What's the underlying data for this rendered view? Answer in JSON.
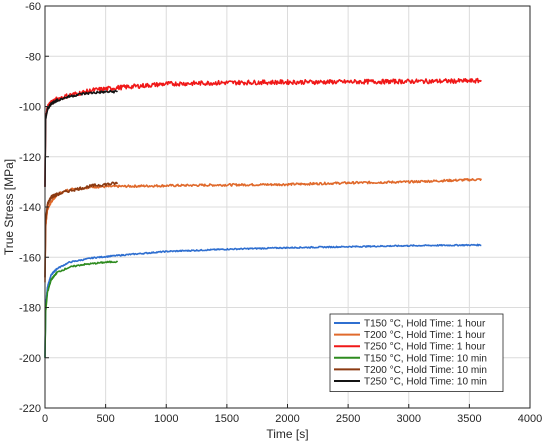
{
  "chart_data": {
    "type": "line",
    "title": "",
    "xlabel": "Time [s]",
    "ylabel": "True Stress [MPa]",
    "xlim": [
      0,
      4000
    ],
    "ylim": [
      -220,
      -60
    ],
    "xticks": [
      0,
      500,
      1000,
      1500,
      2000,
      2500,
      3000,
      3500,
      4000
    ],
    "yticks": [
      -220,
      -200,
      -180,
      -160,
      -140,
      -120,
      -100,
      -80,
      -60
    ],
    "grid": true,
    "legend": "bottom-right",
    "series": [
      {
        "name": "T150 °C, Hold Time: 1 hour",
        "color": "#2f6fd0",
        "noise": 0.25,
        "x": [
          0,
          5,
          20,
          50,
          100,
          200,
          400,
          600,
          1000,
          1500,
          2000,
          2500,
          3000,
          3600
        ],
        "y": [
          -200,
          -180,
          -172,
          -167,
          -164.5,
          -162,
          -160.2,
          -159.3,
          -157.7,
          -156.8,
          -156.2,
          -155.8,
          -155.4,
          -155.1
        ]
      },
      {
        "name": "T200 °C, Hold Time: 1 hour",
        "color": "#e06a2c",
        "noise": 0.45,
        "x": [
          0,
          5,
          20,
          50,
          100,
          200,
          400,
          600,
          1000,
          1500,
          2000,
          2500,
          3000,
          3600
        ],
        "y": [
          -170,
          -148,
          -141,
          -138,
          -135,
          -133,
          -132,
          -131.8,
          -131.5,
          -131.2,
          -131,
          -130.4,
          -130,
          -129
        ]
      },
      {
        "name": "T250 °C, Hold Time: 1 hour",
        "color": "#f01818",
        "noise": 0.9,
        "x": [
          0,
          5,
          20,
          50,
          100,
          200,
          400,
          600,
          1000,
          1500,
          2000,
          2500,
          3000,
          3600
        ],
        "y": [
          -132,
          -104,
          -100.5,
          -98.5,
          -97,
          -95.5,
          -93.5,
          -92.5,
          -91,
          -90.5,
          -90.3,
          -90.2,
          -90,
          -89.8
        ]
      },
      {
        "name": "T150 °C, Hold Time: 10 min",
        "color": "#2e8b1f",
        "noise": 0.3,
        "x": [
          0,
          5,
          20,
          50,
          100,
          200,
          300,
          400,
          500,
          600
        ],
        "y": [
          -200,
          -182,
          -174,
          -169,
          -166,
          -164,
          -163,
          -162.5,
          -162,
          -161.7
        ]
      },
      {
        "name": "T200 °C, Hold Time: 10 min",
        "color": "#8b3a12",
        "noise": 0.6,
        "x": [
          0,
          5,
          20,
          50,
          100,
          200,
          300,
          400,
          500,
          600
        ],
        "y": [
          -168,
          -146,
          -139,
          -136,
          -135,
          -133.5,
          -132.5,
          -131.5,
          -131,
          -130.5
        ]
      },
      {
        "name": "T250 °C, Hold Time: 10 min",
        "color": "#141414",
        "noise": 0.5,
        "x": [
          0,
          5,
          20,
          50,
          100,
          200,
          300,
          400,
          500,
          600
        ],
        "y": [
          -132,
          -105,
          -101,
          -99,
          -97.5,
          -96,
          -95,
          -94.5,
          -94.2,
          -94
        ]
      }
    ]
  }
}
